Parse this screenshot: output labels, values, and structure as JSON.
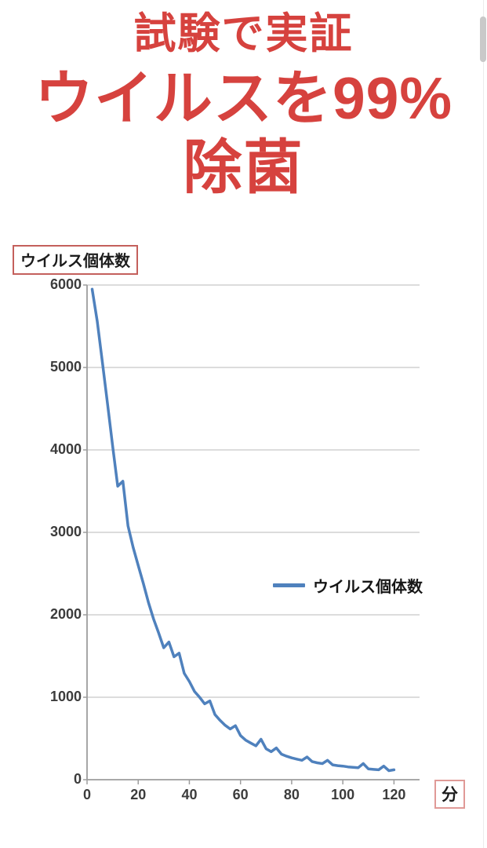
{
  "header": {
    "line1": "試験で実証",
    "line2": "ウイルスを99%",
    "line3": "除菌",
    "color": "#d6423e"
  },
  "chart_data": {
    "type": "line",
    "title": "",
    "xlabel": "分",
    "ylabel": "ウイルス個体数",
    "xlim": [
      0,
      130
    ],
    "ylim": [
      0,
      6000
    ],
    "x_ticks": [
      0,
      20,
      40,
      60,
      80,
      100,
      120
    ],
    "y_ticks": [
      0,
      1000,
      2000,
      3000,
      4000,
      5000,
      6000
    ],
    "grid": "horizontal-only",
    "legend_position": "center-right-inside",
    "line_color": "#4f81bd",
    "gridline_color": "#c8c8c8",
    "axis_color": "#9d9d9d",
    "tick_label_color": "#3c3c3c",
    "x": [
      2,
      4,
      6,
      8,
      10,
      12,
      14,
      16,
      18,
      20,
      22,
      24,
      26,
      28,
      30,
      32,
      34,
      36,
      38,
      40,
      42,
      44,
      46,
      48,
      50,
      52,
      54,
      56,
      58,
      60,
      62,
      64,
      66,
      68,
      70,
      72,
      74,
      76,
      78,
      80,
      82,
      84,
      86,
      88,
      90,
      92,
      94,
      96,
      98,
      100,
      102,
      104,
      106,
      108,
      110,
      112,
      114,
      116,
      118,
      120
    ],
    "series": [
      {
        "name": "ウイルス個体数",
        "values": [
          5950,
          5560,
          5060,
          4560,
          4050,
          3560,
          3620,
          3080,
          2820,
          2600,
          2380,
          2150,
          1950,
          1780,
          1600,
          1670,
          1490,
          1535,
          1290,
          1190,
          1070,
          1000,
          920,
          955,
          790,
          720,
          660,
          615,
          655,
          535,
          480,
          445,
          410,
          490,
          375,
          340,
          385,
          310,
          285,
          265,
          250,
          235,
          275,
          220,
          205,
          195,
          235,
          180,
          170,
          165,
          155,
          150,
          145,
          195,
          130,
          125,
          120,
          165,
          110,
          120
        ]
      }
    ]
  }
}
